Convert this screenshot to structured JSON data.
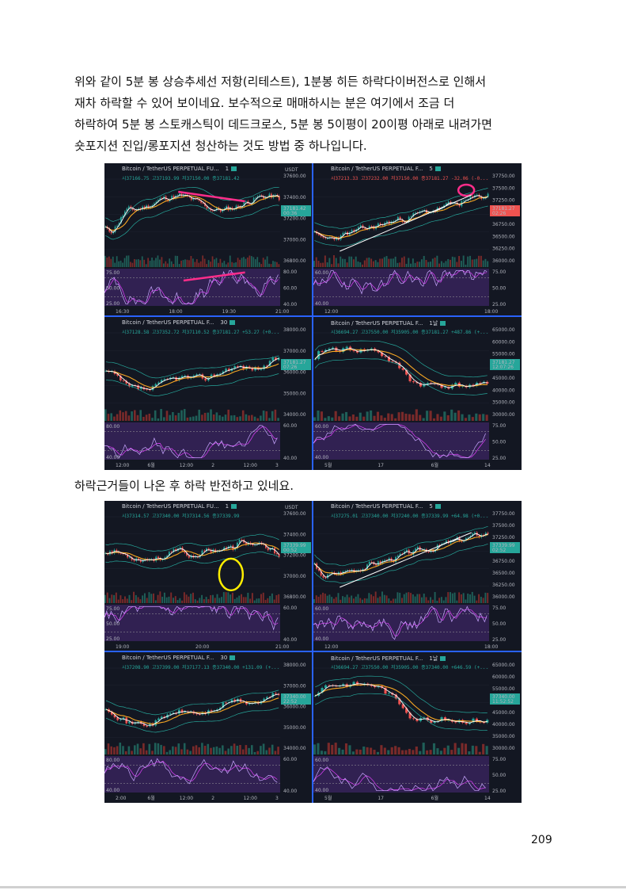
{
  "paragraph": {
    "lines": [
      "위와 같이 5분 봉 상승추세선 저항(리테스트), 1분봉 히든 하락다이버전스로 인해서",
      "재차 하락할 수 있어 보이네요. 보수적으로 매매하시는 분은 여기에서 조금 더",
      "하락하여 5분 봉 스토캐스틱이 데드크로스, 5분 봉 5이평이 20이평 아래로 내려가면",
      "숏포지션 진입/롱포지션 청산하는 것도 방법 중 하나입니다."
    ]
  },
  "caption": "하락근거들이 나온 후 하락 반전하고 있네요.",
  "page_number": "209",
  "screenshot1": {
    "panes": [
      {
        "title": "Bitcoin / TetherUS PERPETUAL FU...",
        "tf": "1",
        "ohlc": "시37166.75 고37193.99 저37150.00 종37181.42",
        "ohlc_color": "green",
        "price_ticks": [
          "37600.00",
          "37400.00",
          "37200.00",
          "37000.00",
          "36800.00"
        ],
        "price_label": "37181.42",
        "price_sub": "00:36",
        "osc_ticks": [
          "80.00",
          "60.00",
          "40.00"
        ],
        "osc_left_ticks": [
          "75.00",
          "50.00",
          "25.00"
        ],
        "time_ticks": [
          "16:30",
          "18:00",
          "19:30",
          "21:00"
        ],
        "unit": "USDT"
      },
      {
        "title": "Bitcoin / TetherUS PERPETUAL F...",
        "tf": "5",
        "ohlc": "시37213.33 고37232.00 저37150.00 종37181.27 -32.06 (-0...",
        "ohlc_color": "red",
        "price_ticks": [
          "37750.00",
          "37500.00",
          "37250.00",
          "37000.00",
          "36750.00",
          "36500.00",
          "36250.00",
          "36000.00"
        ],
        "price_label": "37181.27",
        "price_sub": "02:26",
        "osc_ticks": [
          "75.00",
          "50.00",
          "25.00"
        ],
        "osc_left_ticks": [
          "60.00",
          "40.00"
        ],
        "time_ticks": [
          "12:00",
          "18:00"
        ]
      },
      {
        "title": "Bitcoin / TetherUS PERPETUAL F...",
        "tf": "30",
        "ohlc": "시37128.58 고37352.72 저37110.52 종37181.27 +53.27 (+0...",
        "ohlc_color": "green",
        "price_ticks": [
          "38000.00",
          "37000.00",
          "36000.00",
          "35000.00",
          "34000.00"
        ],
        "price_label": "37181.27",
        "price_sub": "07:26",
        "osc_ticks": [
          "60.00",
          "40.00"
        ],
        "osc_left_ticks": [
          "80.00",
          "40.00"
        ],
        "time_ticks": [
          "12:00",
          "6월",
          "12:00",
          "2",
          "12:00",
          "3"
        ]
      },
      {
        "title": "Bitcoin / TetherUS PERPETUAL F...",
        "tf": "1날",
        "ohlc": "시36694.27 고37550.00 저35905.00 종37181.27 +487.86 (+...",
        "ohlc_color": "green",
        "price_ticks": [
          "65000.00",
          "60000.00",
          "55000.00",
          "50000.00",
          "45000.00",
          "40000.00",
          "35000.00",
          "30000.00"
        ],
        "price_label": "37181.27",
        "price_sub": "12:07:26",
        "osc_ticks": [
          "75.00",
          "50.00",
          "25.00"
        ],
        "osc_left_ticks": [
          "60.00",
          "40.00"
        ],
        "time_ticks": [
          "5월",
          "17",
          "6월",
          "14"
        ]
      }
    ]
  },
  "screenshot2": {
    "panes": [
      {
        "title": "Bitcoin / TetherUS PERPETUAL FU...",
        "tf": "1",
        "ohlc": "시37314.57 고37340.00 저37314.56 종37339.99",
        "ohlc_color": "green",
        "price_ticks": [
          "37600.00",
          "37400.00",
          "37200.00",
          "37000.00",
          "36800.00"
        ],
        "price_label": "37339.99",
        "price_sub": "00:52",
        "osc_ticks": [
          "60.00",
          "40.00"
        ],
        "osc_left_ticks": [
          "75.00",
          "50.00",
          "25.00"
        ],
        "time_ticks": [
          "19:00",
          "20:00",
          "21:00"
        ],
        "unit": "USDT"
      },
      {
        "title": "Bitcoin / TetherUS PERPETUAL F...",
        "tf": "5",
        "ohlc": "시37275.01 고37340.00 저37240.00 종37339.99 +64.98 (+0...",
        "ohlc_color": "green",
        "price_ticks": [
          "37750.00",
          "37500.00",
          "37250.00",
          "37000.00",
          "36750.00",
          "36500.00",
          "36250.00",
          "36000.00"
        ],
        "price_label": "37339.99",
        "price_sub": "02:52",
        "osc_ticks": [
          "75.00",
          "50.00",
          "25.00"
        ],
        "osc_left_ticks": [
          "60.00",
          "40.00"
        ],
        "time_ticks": [
          "12:00",
          "18:00"
        ]
      },
      {
        "title": "Bitcoin / TetherUS PERPETUAL F...",
        "tf": "30",
        "ohlc": "시37208.90 고37399.00 저37177.13 종37340.00 +131.09 (+...",
        "ohlc_color": "green",
        "price_ticks": [
          "38000.00",
          "37000.00",
          "36000.00",
          "35000.00",
          "34000.00"
        ],
        "price_label": "37340.00",
        "price_sub": "22:52",
        "osc_ticks": [
          "60.00",
          "40.00"
        ],
        "osc_left_ticks": [
          "80.00",
          "40.00"
        ],
        "time_ticks": [
          "2:00",
          "6월",
          "12:00",
          "2",
          "12:00",
          "3"
        ]
      },
      {
        "title": "Bitcoin / TetherUS PERPETUAL F...",
        "tf": "1날",
        "ohlc": "시36694.27 고37550.00 저35905.00 종37340.00 +646.59 (+...",
        "ohlc_color": "green",
        "price_ticks": [
          "65000.00",
          "60000.00",
          "55000.00",
          "50000.00",
          "45000.00",
          "40000.00",
          "35000.00",
          "30000.00"
        ],
        "price_label": "37340.00",
        "price_sub": "11:52:52",
        "osc_ticks": [
          "75.00",
          "50.00",
          "25.00"
        ],
        "osc_left_ticks": [
          "60.00",
          "40.00"
        ],
        "time_ticks": [
          "5월",
          "17",
          "6월",
          "14"
        ]
      }
    ]
  },
  "colors": {
    "bg": "#131722",
    "up": "#26a69a",
    "down": "#ef5350",
    "ma_fast": "#ffffff",
    "ma_slow": "#f5a623",
    "band": "#26a69a",
    "osc_bg": "#4a2a7a",
    "osc_k": "#c8a6ff",
    "osc_d": "#e040fb",
    "separator": "#2962ff",
    "annotation_pink": "#ff2d8a",
    "annotation_yellow": "#ffee00"
  }
}
